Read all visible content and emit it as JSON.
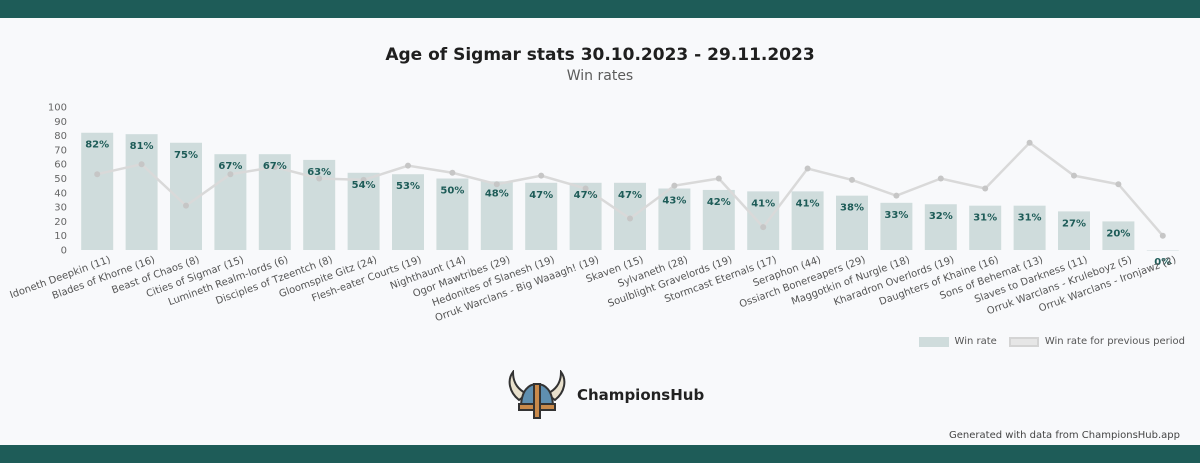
{
  "header": {
    "title": "Age of Sigmar stats 30.10.2023 - 29.11.2023",
    "subtitle": "Win rates"
  },
  "chart_data": {
    "type": "bar",
    "title": "Age of Sigmar stats 30.10.2023 - 29.11.2023",
    "subtitle": "Win rates",
    "ylim": [
      0,
      100
    ],
    "yticks": [
      0,
      10,
      20,
      30,
      40,
      50,
      60,
      70,
      80,
      90,
      100
    ],
    "grid": false,
    "legend_position": "bottom-right",
    "categories": [
      "Idoneth Deepkin (11)",
      "Blades of Khorne (16)",
      "Beast of Chaos (8)",
      "Cities of Sigmar (15)",
      "Lumineth Realm-lords (6)",
      "Disciples of Tzeentch (8)",
      "Gloomspite Gitz (24)",
      "Flesh-eater Courts (19)",
      "Nighthaunt (14)",
      "Ogor Mawtribes (29)",
      "Hedonites of Slanesh (19)",
      "Orruk Warclans - Big Waaagh! (19)",
      "Skaven (15)",
      "Sylvaneth (28)",
      "Soulblight Gravelords (19)",
      "Stormcast Eternals (17)",
      "Seraphon (44)",
      "Ossiarch Bonereapers (29)",
      "Maggotkin of Nurgle (18)",
      "Kharadron Overlords (19)",
      "Daughters of Khaine (16)",
      "Sons of Behemat (13)",
      "Slaves to Darkness (11)",
      "Orruk Warclans - Kruleboyz (5)",
      "Orruk Warclans - Ironjawz (2)"
    ],
    "series": [
      {
        "name": "Win rate",
        "type": "bar",
        "color": "#cfdcdc",
        "values": [
          82,
          81,
          75,
          67,
          67,
          63,
          54,
          53,
          50,
          48,
          47,
          47,
          47,
          43,
          42,
          41,
          41,
          38,
          33,
          32,
          31,
          31,
          27,
          20,
          0
        ],
        "labels": [
          "82%",
          "81%",
          "75%",
          "67%",
          "67%",
          "63%",
          "54%",
          "53%",
          "50%",
          "48%",
          "47%",
          "47%",
          "47%",
          "43%",
          "42%",
          "41%",
          "41%",
          "38%",
          "33%",
          "32%",
          "31%",
          "31%",
          "27%",
          "20%",
          "0%"
        ]
      },
      {
        "name": "Win rate for previous period",
        "type": "line",
        "color": "#d9d9d9",
        "values": [
          53,
          60,
          31,
          53,
          58,
          50,
          49,
          59,
          54,
          46,
          52,
          43,
          22,
          45,
          50,
          16,
          57,
          49,
          38,
          50,
          43,
          75,
          52,
          46,
          10
        ]
      }
    ]
  },
  "brand": {
    "name": "ChampionsHub",
    "icon": "viking-helmet-icon"
  },
  "footer": {
    "text": "Generated with data from ChampionsHub.app"
  },
  "colors": {
    "band": "#1e5c58",
    "bar": "#cfdcdc",
    "line": "#d9d9d9",
    "label": "#1e5c58"
  }
}
